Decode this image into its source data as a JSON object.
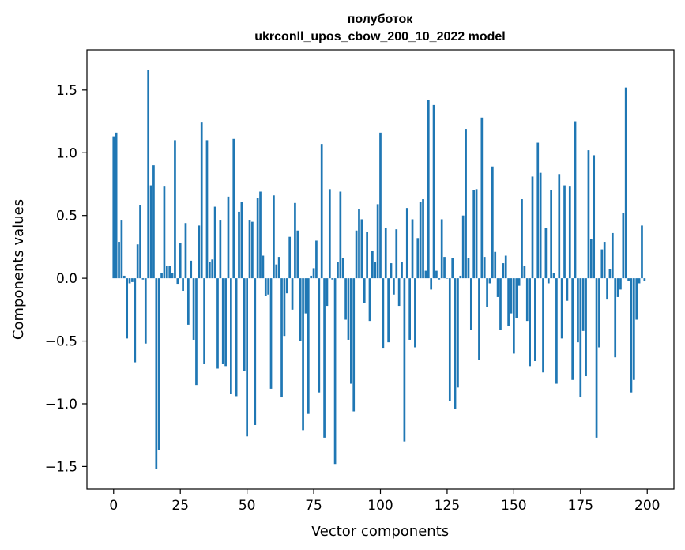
{
  "chart_data": {
    "type": "bar",
    "title": "полуботок",
    "subtitle": "ukrconll_upos_cbow_200_10_2022 model",
    "xlabel": "Vector components",
    "ylabel": "Components values",
    "xlim": [
      -10,
      210
    ],
    "ylim": [
      -1.68,
      1.82
    ],
    "xticks": [
      0,
      25,
      50,
      75,
      100,
      125,
      150,
      175,
      200
    ],
    "xtick_labels": [
      "0",
      "25",
      "50",
      "75",
      "100",
      "125",
      "150",
      "175",
      "200"
    ],
    "yticks": [
      -1.5,
      -1.0,
      -0.5,
      0.0,
      0.5,
      1.0,
      1.5
    ],
    "ytick_labels": [
      "−1.5",
      "−1.0",
      "−0.5",
      "0.0",
      "0.5",
      "1.0",
      "1.5"
    ],
    "grid": false,
    "color": "#1f77b4",
    "values": [
      1.13,
      1.16,
      0.29,
      0.46,
      0.02,
      -0.48,
      -0.04,
      -0.03,
      -0.67,
      0.27,
      0.58,
      -0.01,
      -0.52,
      1.66,
      0.74,
      0.9,
      -1.52,
      -1.37,
      0.04,
      0.73,
      0.1,
      0.1,
      0.04,
      1.1,
      -0.05,
      0.28,
      -0.1,
      0.44,
      -0.37,
      0.14,
      -0.49,
      -0.85,
      0.42,
      1.24,
      -0.68,
      1.1,
      0.13,
      0.15,
      0.57,
      -0.72,
      0.46,
      -0.68,
      -0.7,
      0.65,
      -0.92,
      1.11,
      -0.94,
      0.53,
      0.61,
      -0.74,
      -1.26,
      0.46,
      0.45,
      -1.17,
      0.64,
      0.69,
      0.18,
      -0.14,
      -0.13,
      -0.88,
      0.66,
      0.11,
      0.17,
      -0.95,
      -0.46,
      -0.12,
      0.33,
      -0.25,
      0.6,
      0.38,
      -0.5,
      -1.21,
      -0.28,
      -1.08,
      0.02,
      0.08,
      0.3,
      -0.91,
      1.07,
      -1.27,
      -0.22,
      0.71,
      -0.01,
      -1.48,
      0.13,
      0.69,
      0.16,
      -0.33,
      -0.49,
      -0.84,
      -1.06,
      0.38,
      0.55,
      0.47,
      -0.2,
      0.37,
      -0.34,
      0.22,
      0.13,
      0.59,
      1.16,
      -0.56,
      0.4,
      -0.51,
      0.12,
      -0.13,
      0.39,
      -0.22,
      0.13,
      -1.3,
      0.56,
      -0.49,
      0.47,
      -0.55,
      0.32,
      0.61,
      0.63,
      0.06,
      1.42,
      -0.09,
      1.38,
      0.06,
      -0.01,
      0.47,
      0.17,
      0.0,
      -0.98,
      0.16,
      -1.04,
      -0.87,
      0.02,
      0.5,
      1.19,
      0.16,
      -0.41,
      0.7,
      0.71,
      -0.65,
      1.28,
      0.17,
      -0.23,
      -0.04,
      0.89,
      0.21,
      -0.15,
      -0.41,
      0.12,
      0.18,
      -0.38,
      -0.28,
      -0.6,
      -0.32,
      -0.06,
      0.63,
      0.1,
      -0.34,
      -0.7,
      0.81,
      -0.66,
      1.08,
      0.84,
      -0.75,
      0.4,
      -0.04,
      0.7,
      0.04,
      -0.84,
      0.83,
      -0.48,
      0.74,
      -0.18,
      0.73,
      -0.81,
      1.25,
      -0.51,
      -0.95,
      -0.42,
      -0.78,
      1.02,
      0.31,
      0.98,
      -1.27,
      -0.55,
      0.23,
      0.29,
      -0.17,
      0.07,
      0.36,
      -0.63,
      -0.15,
      -0.09,
      0.52,
      1.52,
      -0.02,
      -0.91,
      -0.81,
      -0.33,
      -0.04,
      0.42,
      -0.02
    ]
  }
}
